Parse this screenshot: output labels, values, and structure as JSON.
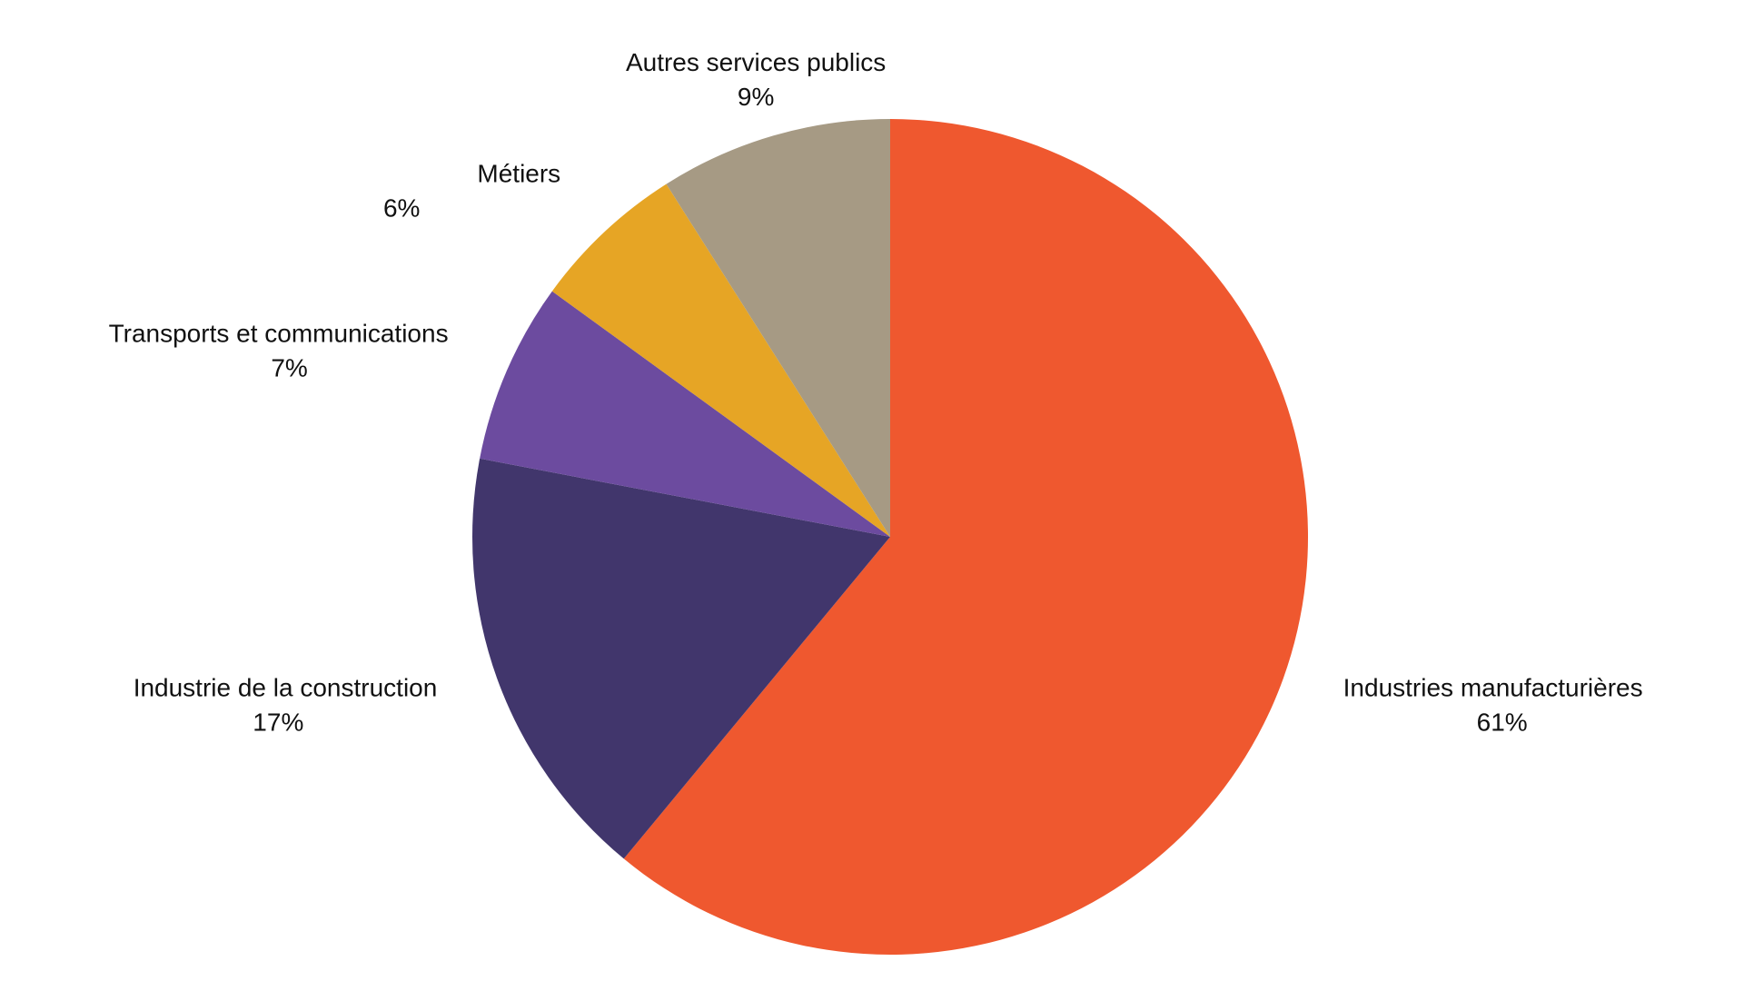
{
  "chart_data": {
    "type": "pie",
    "start_angle_deg": 0,
    "direction": "clockwise",
    "slices": [
      {
        "label": "Industries manufacturières",
        "value": 61,
        "value_label": "61%",
        "color": "#EF582F"
      },
      {
        "label": "Industrie de la construction",
        "value": 17,
        "value_label": "17%",
        "color": "#41366C"
      },
      {
        "label": "Transports et communications",
        "value": 7,
        "value_label": "7%",
        "color": "#6C4B9F"
      },
      {
        "label": "Métiers",
        "value": 6,
        "value_label": "6%",
        "color": "#E6A525"
      },
      {
        "label": "Autres services publics",
        "value": 9,
        "value_label": "9%",
        "color": "#A69A84"
      }
    ]
  }
}
